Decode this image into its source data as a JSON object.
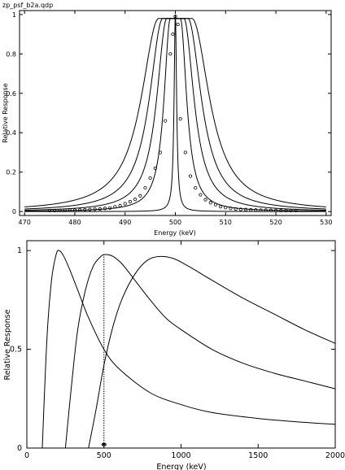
{
  "chart_data": [
    {
      "type": "line",
      "title": "zp_psf_b2a.qdp",
      "xlabel": "Energy (keV)",
      "ylabel": "Relative Response",
      "xlim": [
        469,
        531
      ],
      "ylim": [
        -0.02,
        1.02
      ],
      "xticks": [
        470,
        480,
        490,
        500,
        510,
        520,
        530
      ],
      "yticks": [
        0,
        0.2,
        0.4,
        0.6,
        0.8,
        1
      ],
      "ytick_labels": [
        "0",
        "0.2",
        "0.4",
        "0.6",
        "0.8",
        "1"
      ],
      "x_range_curves": [
        470,
        530
      ],
      "series": [
        {
          "center": 500.0,
          "flat_halfwidth": 0.0,
          "gamma": 0.3,
          "peak": 1.0
        },
        {
          "center": 500.0,
          "flat_halfwidth": 1.0,
          "gamma": 1.5,
          "peak": 0.98
        },
        {
          "center": 500.0,
          "flat_halfwidth": 1.7,
          "gamma": 2.4,
          "peak": 0.98
        },
        {
          "center": 500.0,
          "flat_halfwidth": 2.5,
          "gamma": 3.2,
          "peak": 0.98
        },
        {
          "center": 500.0,
          "flat_halfwidth": 3.3,
          "gamma": 4.2,
          "peak": 0.98
        }
      ],
      "markers": {
        "shape": "circle",
        "x": [
          475,
          476,
          477,
          478,
          479,
          480,
          481,
          482,
          483,
          484,
          485,
          486,
          487,
          488,
          489,
          490,
          491,
          492,
          493,
          494,
          495,
          496,
          497,
          498,
          499,
          499.5,
          500,
          500.5,
          501,
          502,
          503,
          504,
          505,
          506,
          507,
          508,
          509,
          510,
          511,
          512,
          513,
          514,
          515,
          516,
          517,
          518,
          519,
          520,
          521,
          522,
          523,
          524
        ],
        "y": [
          0.005,
          0.005,
          0.006,
          0.006,
          0.007,
          0.007,
          0.008,
          0.009,
          0.01,
          0.012,
          0.013,
          0.016,
          0.018,
          0.024,
          0.03,
          0.04,
          0.05,
          0.062,
          0.08,
          0.12,
          0.17,
          0.22,
          0.3,
          0.46,
          0.8,
          0.9,
          0.99,
          0.95,
          0.47,
          0.3,
          0.18,
          0.12,
          0.085,
          0.06,
          0.045,
          0.035,
          0.025,
          0.02,
          0.016,
          0.013,
          0.011,
          0.01,
          0.009,
          0.008,
          0.007,
          0.007,
          0.006,
          0.006,
          0.005,
          0.005,
          0.005,
          0.005
        ]
      }
    },
    {
      "type": "line",
      "xlabel": "Energy (keV)",
      "ylabel": "Relative Response",
      "xlim": [
        0,
        2000
      ],
      "ylim": [
        0,
        1.05
      ],
      "xticks": [
        0,
        500,
        1000,
        1500,
        2000
      ],
      "yticks": [
        0,
        0.5,
        1
      ],
      "series": [
        {
          "x": [
            100,
            130,
            160,
            190,
            210,
            240,
            280,
            330,
            400,
            500,
            600,
            800,
            1000,
            1200,
            1500,
            1800,
            2000
          ],
          "y": [
            0.0,
            0.55,
            0.85,
            0.98,
            1.0,
            0.97,
            0.9,
            0.8,
            0.66,
            0.5,
            0.4,
            0.28,
            0.22,
            0.18,
            0.15,
            0.13,
            0.12
          ]
        },
        {
          "x": [
            250,
            290,
            330,
            380,
            430,
            480,
            510,
            560,
            620,
            700,
            800,
            900,
            1000,
            1200,
            1400,
            1600,
            1800,
            2000
          ],
          "y": [
            0.0,
            0.32,
            0.6,
            0.8,
            0.92,
            0.97,
            0.98,
            0.97,
            0.93,
            0.85,
            0.75,
            0.66,
            0.6,
            0.5,
            0.43,
            0.38,
            0.34,
            0.3
          ]
        },
        {
          "x": [
            400,
            450,
            500,
            560,
            620,
            700,
            780,
            860,
            950,
            1050,
            1200,
            1400,
            1600,
            1800,
            2000
          ],
          "y": [
            0.0,
            0.2,
            0.42,
            0.62,
            0.76,
            0.88,
            0.95,
            0.97,
            0.96,
            0.92,
            0.85,
            0.76,
            0.68,
            0.6,
            0.53
          ]
        }
      ],
      "vline": {
        "x": 500,
        "y": [
          0,
          0.98
        ],
        "style": "dotted"
      },
      "marker_cluster": {
        "x": 500,
        "y": 0.01
      }
    }
  ]
}
